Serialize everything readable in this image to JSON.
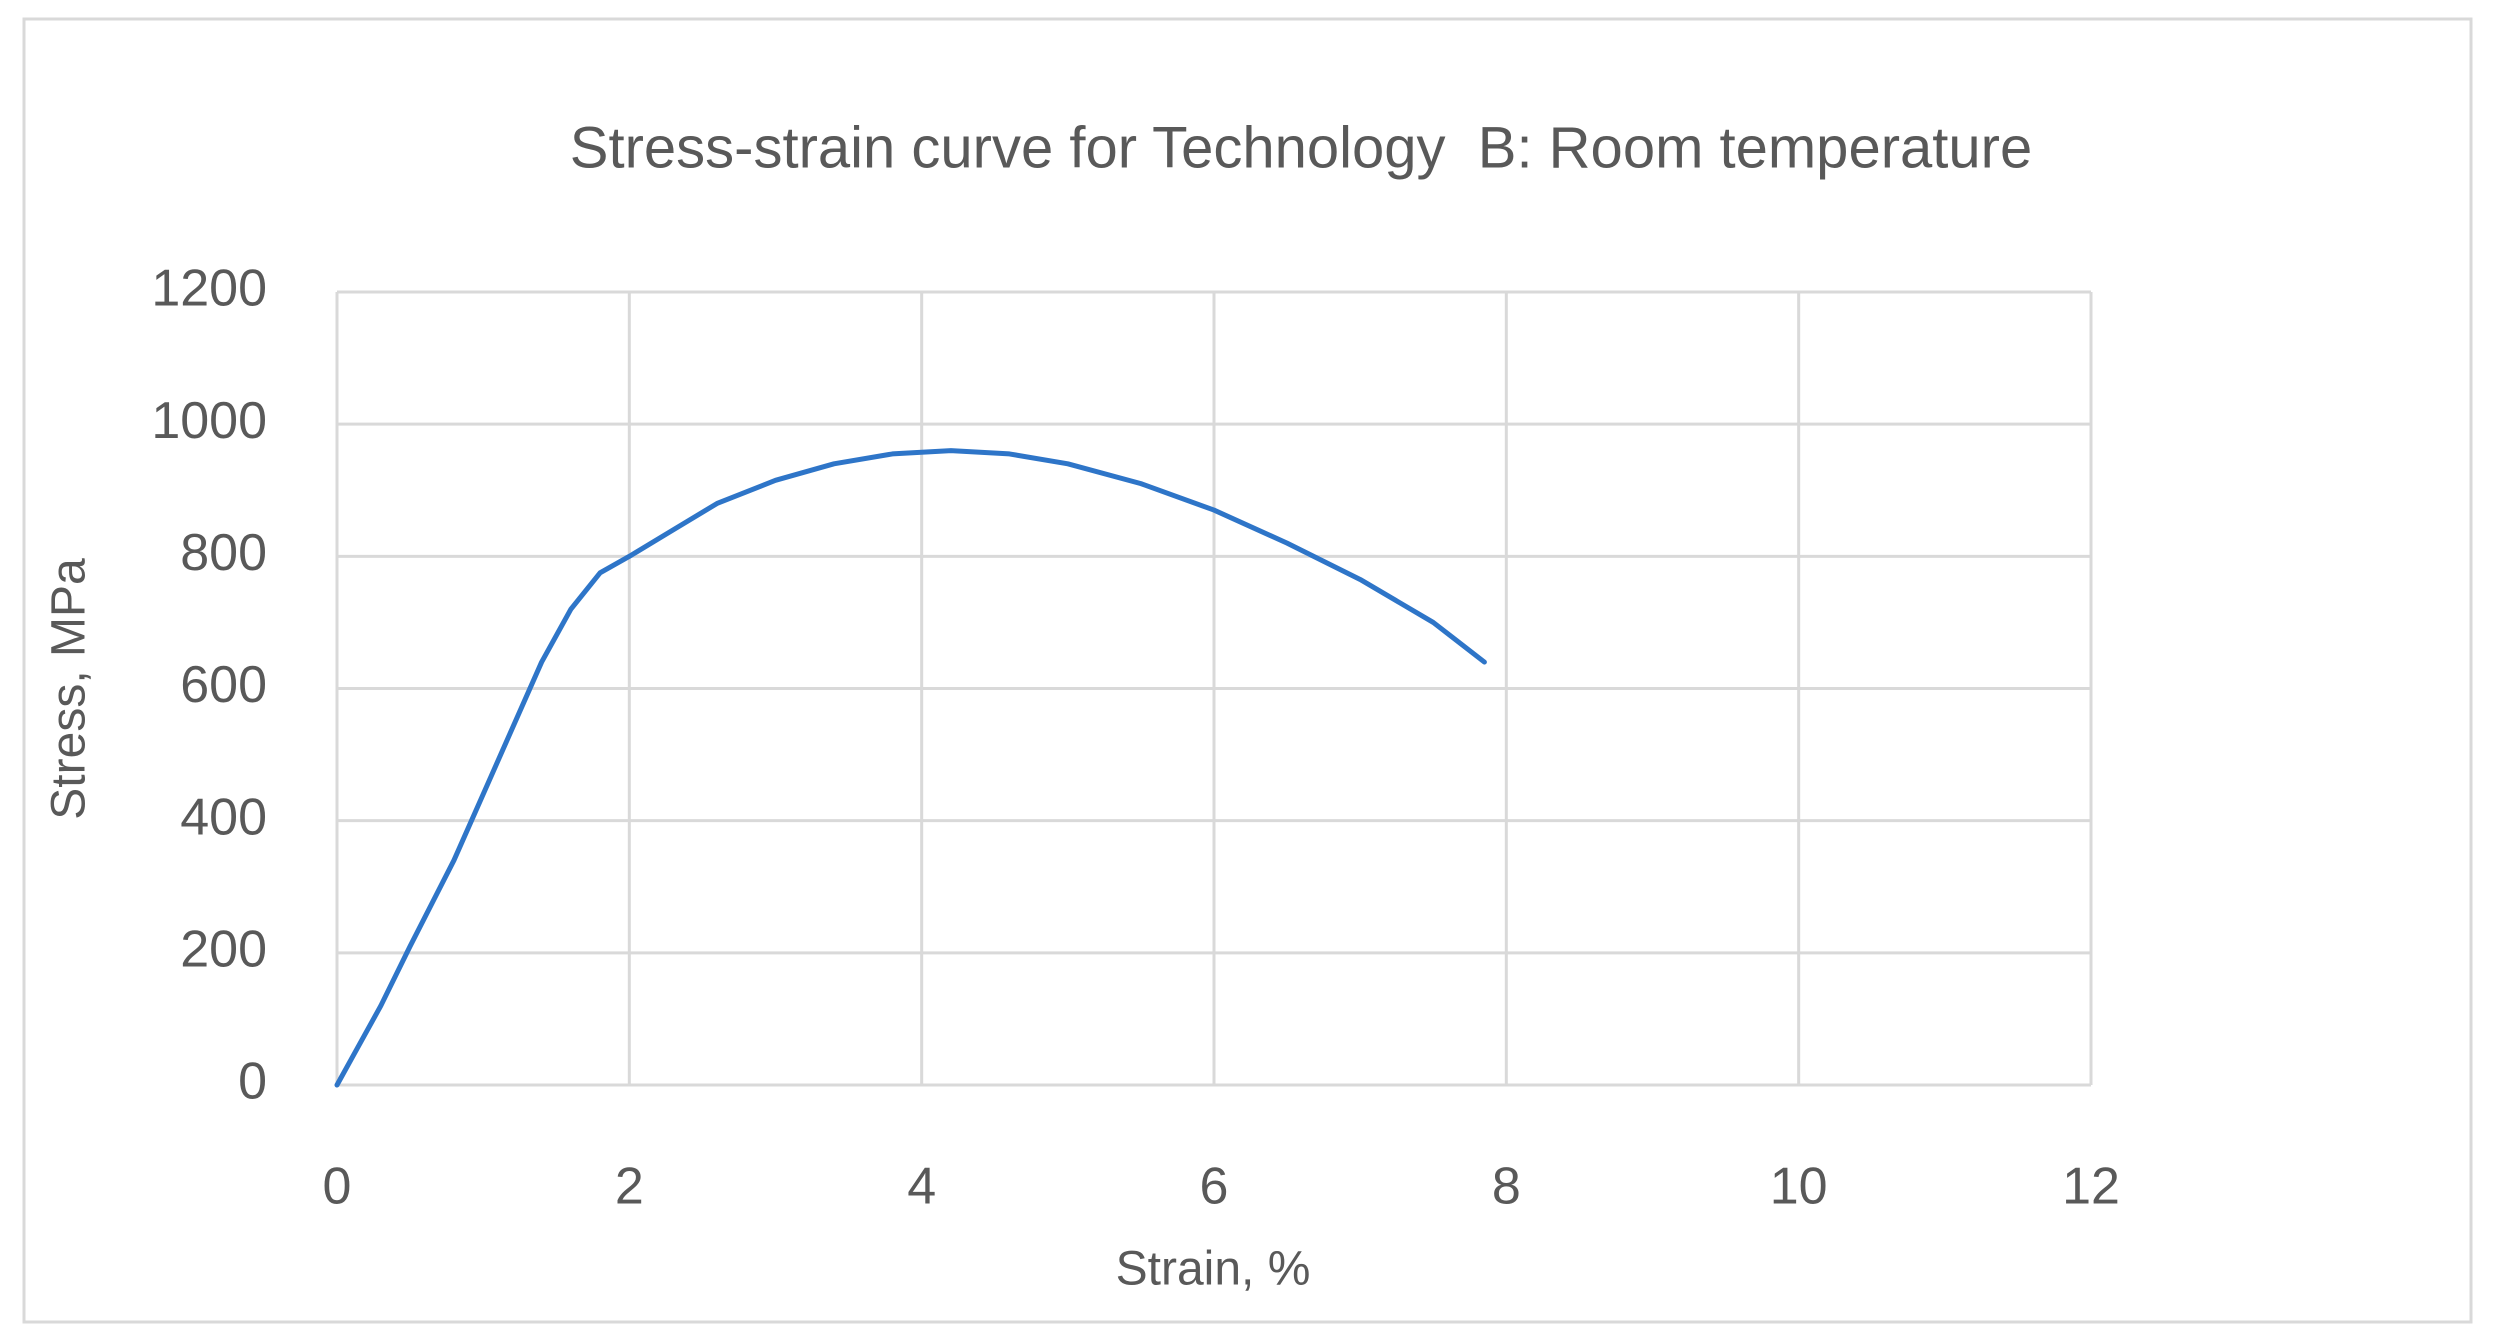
{
  "chart_data": {
    "type": "line",
    "title": "Stress-strain curve for Technology  B: Room temperature",
    "x_label": "Strain, %",
    "y_label": "Stress, MPa",
    "x": [
      0,
      0.1,
      0.3,
      0.5,
      0.8,
      1.0,
      1.2,
      1.4,
      1.6,
      1.8,
      2.0,
      2.3,
      2.6,
      3.0,
      3.4,
      3.8,
      4.2,
      4.6,
      5.0,
      5.5,
      6.0,
      6.5,
      7.0,
      7.5,
      7.85
    ],
    "series": [
      {
        "name": "Stress",
        "color": "#2e75c8",
        "values": [
          0,
          40,
          120,
          210,
          340,
          440,
          540,
          640,
          720,
          775,
          800,
          840,
          880,
          915,
          940,
          955,
          960,
          955,
          940,
          910,
          870,
          820,
          765,
          700,
          640
        ]
      }
    ],
    "xlim": [
      0,
      12
    ],
    "xticks": [
      0,
      2,
      4,
      6,
      8,
      10,
      12
    ],
    "ylim": [
      0,
      1200
    ],
    "yticks": [
      0,
      200,
      400,
      600,
      800,
      1000,
      1200
    ],
    "grid": true
  }
}
